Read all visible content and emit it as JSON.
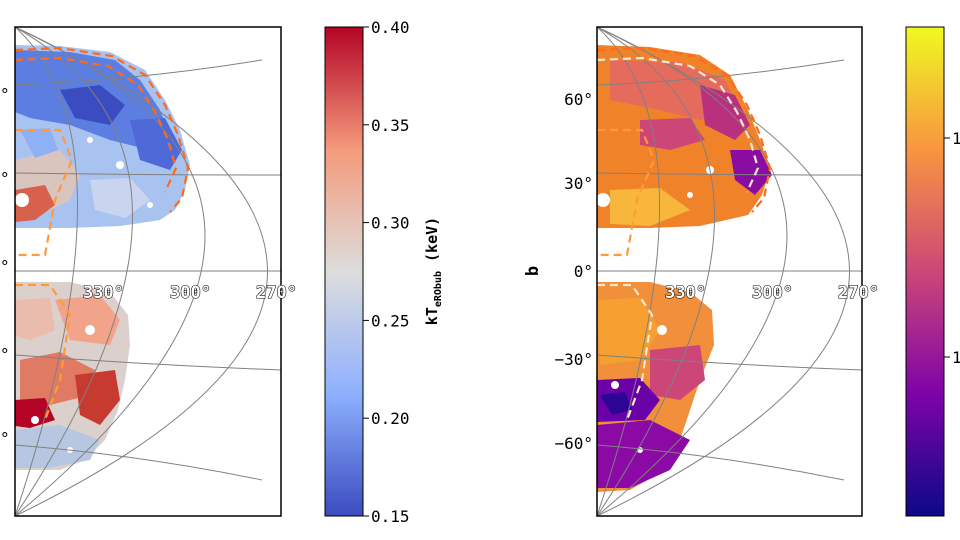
{
  "chart_data": [
    {
      "type": "heatmap",
      "projection": "galactic map (aitoff-like), eastern half cropped",
      "colormap": "coolwarm",
      "lon_tick_labels": [
        "330°",
        "300°",
        "270°"
      ],
      "lat_tick_labels": [
        "°",
        "°",
        "°",
        "°",
        "°"
      ],
      "colorbar": {
        "label_main": "kT",
        "label_sub": "eRObub",
        "label_unit": " (keV)",
        "ticks": [
          0.15,
          0.2,
          0.25,
          0.3,
          0.35,
          0.4
        ],
        "tick_labels": [
          "0.15",
          "0.20",
          "0.25",
          "0.30",
          "0.35",
          "0.40"
        ],
        "range": [
          0.15,
          0.4
        ]
      },
      "contours": {
        "inner": "#ff6a1a",
        "outer": "#ff9a3a"
      }
    },
    {
      "type": "heatmap",
      "projection": "galactic map (aitoff-like), eastern half cropped",
      "colormap": "plasma",
      "ylabel": "b",
      "lon_tick_labels": [
        "330°",
        "300°",
        "270°"
      ],
      "lat_tick_labels": [
        "60°",
        "30°",
        "0°",
        "−30°",
        "−60°"
      ],
      "colorbar": {
        "tick_labels": [
          "1",
          "1"
        ]
      }
    }
  ]
}
